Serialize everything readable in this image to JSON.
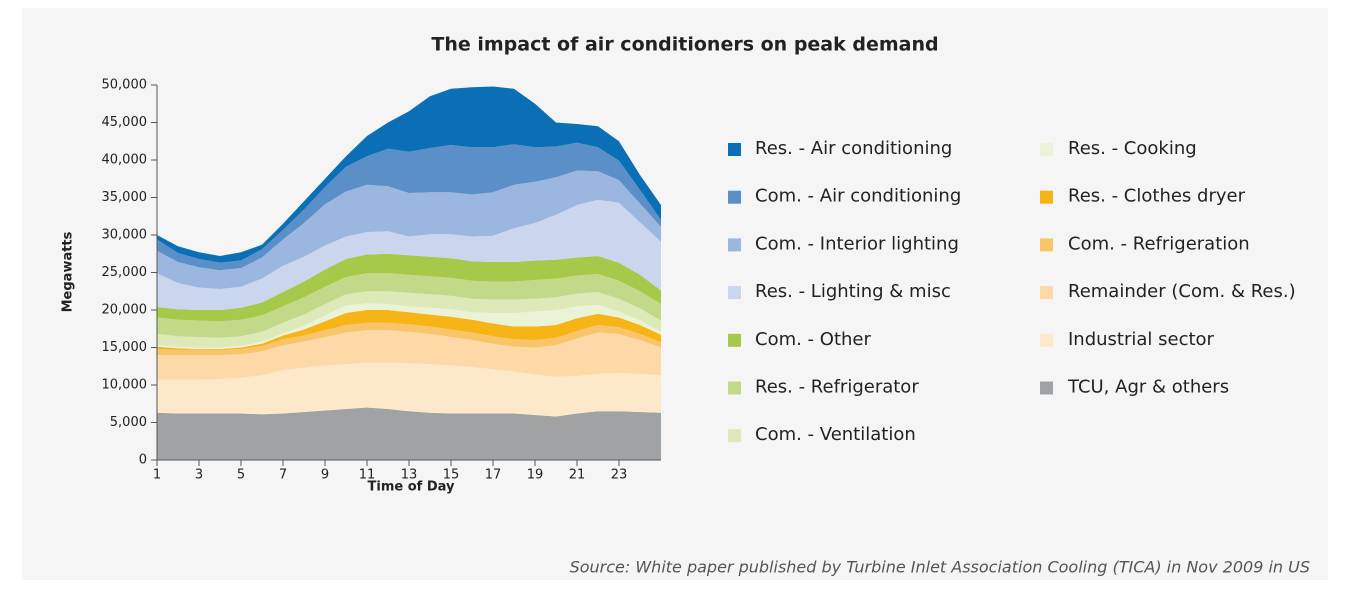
{
  "chart_data": {
    "type": "stacked_area",
    "title": "The impact of air conditioners on peak demand",
    "xlabel": "Time of Day",
    "ylabel": "Megawatts",
    "source": "Source: White paper published  by Turbine Inlet Association Cooling (TICA) in Nov 2009 in US",
    "x": [
      1,
      2,
      3,
      4,
      5,
      6,
      7,
      8,
      9,
      10,
      11,
      12,
      13,
      14,
      15,
      16,
      17,
      18,
      19,
      20,
      21,
      22,
      23,
      24,
      25
    ],
    "xlim": [
      1,
      25
    ],
    "xticks": [
      1,
      3,
      5,
      7,
      9,
      11,
      13,
      15,
      17,
      19,
      21,
      23
    ],
    "ylim": [
      0,
      50000
    ],
    "yticks": [
      0,
      {
        "value": 5000,
        "label": "5,000"
      },
      {
        "value": 10000,
        "label": "10,000"
      },
      {
        "value": 15000,
        "label": "15,000"
      },
      {
        "value": 20000,
        "label": "20,000"
      },
      {
        "value": 25000,
        "label": "25,000"
      },
      {
        "value": 30000,
        "label": "30,000"
      },
      {
        "value": 35000,
        "label": "35,000"
      },
      {
        "value": 40000,
        "label": "40,000"
      },
      {
        "value": 45000,
        "label": "45,000"
      },
      {
        "value": 50000,
        "label": "50,000"
      }
    ],
    "series": [
      {
        "name": "Res. - Air conditioning",
        "color": "#0b6fb5",
        "values": [
          600,
          900,
          900,
          900,
          1100,
          600,
          800,
          1100,
          1100,
          1400,
          2700,
          3500,
          5400,
          6900,
          7500,
          8000,
          8100,
          7400,
          5800,
          3200,
          2500,
          2800,
          2600,
          2000,
          2000
        ]
      },
      {
        "name": "Com. - Air conditioning",
        "color": "#5b8fc7",
        "values": [
          1500,
          1200,
          1100,
          1000,
          1000,
          1100,
          1300,
          1800,
          2300,
          3300,
          3800,
          5000,
          5500,
          5900,
          6300,
          6300,
          6000,
          5400,
          4600,
          4100,
          3700,
          3200,
          2600,
          1800,
          900
        ]
      },
      {
        "name": "Com. - Interior lighting",
        "color": "#9bb6df",
        "values": [
          3000,
          2800,
          2700,
          2500,
          2500,
          2800,
          3500,
          4500,
          5500,
          6000,
          6300,
          6000,
          5800,
          5600,
          5600,
          5600,
          5800,
          5800,
          5500,
          5000,
          4600,
          3800,
          3000,
          2500,
          2000
        ]
      },
      {
        "name": "Res. - Lighting & misc",
        "color": "#c9d6ee",
        "values": [
          4500,
          3500,
          3000,
          2800,
          2800,
          3200,
          3500,
          3300,
          3200,
          3000,
          3000,
          3000,
          2500,
          3000,
          3200,
          3300,
          3500,
          4500,
          5000,
          6000,
          7000,
          7500,
          8000,
          7000,
          6500
        ]
      },
      {
        "name": "Com. - Other",
        "color": "#a6c94a",
        "values": [
          1400,
          1400,
          1400,
          1500,
          1600,
          1700,
          1900,
          2100,
          2300,
          2400,
          2500,
          2600,
          2600,
          2600,
          2600,
          2600,
          2600,
          2600,
          2600,
          2500,
          2400,
          2400,
          2400,
          2200,
          1800
        ]
      },
      {
        "name": "Res. - Refrigerator",
        "color": "#c3d98a",
        "values": [
          2200,
          2200,
          2200,
          2200,
          2200,
          2200,
          2200,
          2300,
          2300,
          2300,
          2400,
          2400,
          2400,
          2400,
          2400,
          2400,
          2400,
          2400,
          2500,
          2500,
          2400,
          2400,
          2400,
          2300,
          2200
        ]
      },
      {
        "name": "Com. - Ventilation",
        "color": "#dde9b8",
        "values": [
          1500,
          1400,
          1400,
          1300,
          1300,
          1300,
          1400,
          1500,
          1500,
          1500,
          1600,
          1700,
          1800,
          1800,
          1800,
          1800,
          1800,
          1800,
          1700,
          1700,
          1700,
          1700,
          1700,
          1600,
          1500
        ]
      },
      {
        "name": "Res. - Cooking",
        "color": "#ebf3d6",
        "values": [
          200,
          200,
          200,
          200,
          200,
          300,
          300,
          500,
          800,
          1000,
          900,
          800,
          800,
          900,
          1000,
          1000,
          1400,
          1800,
          2000,
          2000,
          1600,
          1200,
          800,
          600,
          400
        ]
      },
      {
        "name": "Res. - Clothes dryer",
        "color": "#f7b417",
        "values": [
          300,
          200,
          100,
          100,
          200,
          300,
          500,
          800,
          1200,
          1600,
          1700,
          1700,
          1600,
          1600,
          1700,
          1700,
          1700,
          1700,
          1800,
          1700,
          1700,
          1500,
          1300,
          1200,
          1000
        ]
      },
      {
        "name": "Com. - Refrigeration",
        "color": "#f9c56a",
        "values": [
          800,
          700,
          700,
          700,
          700,
          700,
          800,
          800,
          900,
          1000,
          1000,
          1000,
          1000,
          1000,
          1000,
          1000,
          1000,
          1000,
          1000,
          1000,
          1000,
          1000,
          900,
          800,
          700
        ]
      },
      {
        "name": "Remainder (Com. & Res.)",
        "color": "#fcd9a6",
        "values": [
          3300,
          3300,
          3300,
          3200,
          3100,
          3200,
          3300,
          3500,
          3800,
          4200,
          4300,
          4300,
          4200,
          4000,
          3800,
          3600,
          3400,
          3300,
          3600,
          4200,
          5000,
          5500,
          5200,
          4500,
          3700
        ]
      },
      {
        "name": "Industrial sector",
        "color": "#fde8c9",
        "values": [
          4400,
          4500,
          4500,
          4600,
          4800,
          5200,
          5800,
          5900,
          6000,
          6000,
          6000,
          6200,
          6400,
          6500,
          6400,
          6200,
          5900,
          5600,
          5400,
          5300,
          5000,
          5000,
          5100,
          5100,
          5000
        ]
      },
      {
        "name": "TCU, Agr & others",
        "color": "#a0a3a6",
        "values": [
          6300,
          6200,
          6200,
          6200,
          6200,
          6100,
          6200,
          6400,
          6600,
          6800,
          7000,
          6800,
          6500,
          6300,
          6200,
          6200,
          6200,
          6200,
          6000,
          5800,
          6200,
          6500,
          6500,
          6400,
          6300
        ]
      }
    ]
  }
}
